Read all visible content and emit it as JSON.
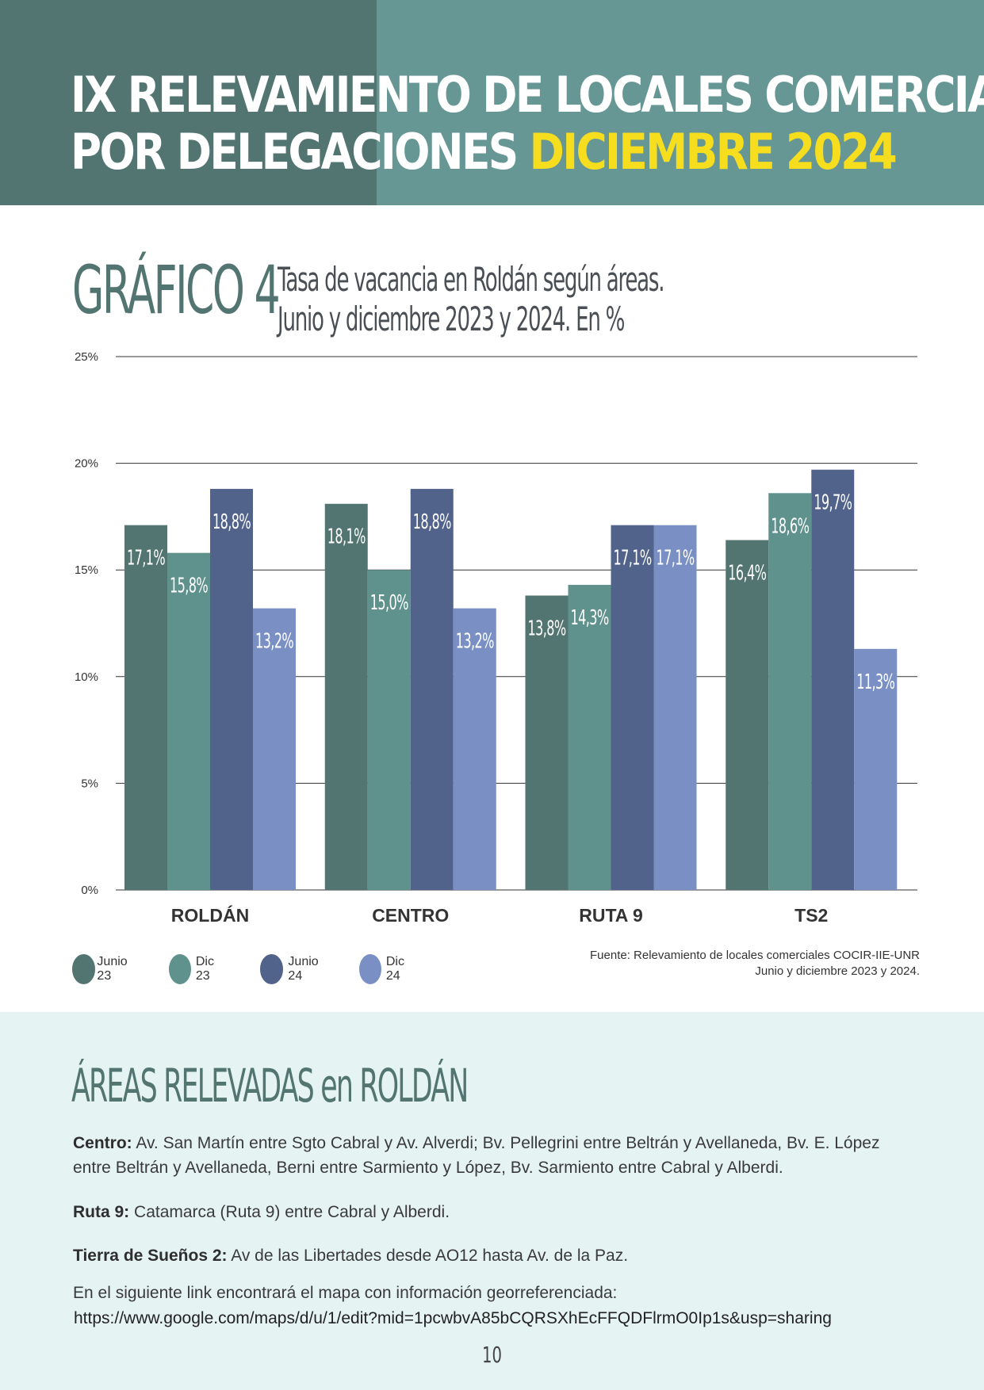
{
  "header": {
    "title_line1": "IX RELEVAMIENTO DE LOCALES COMERCIALES",
    "title_line2_a": "POR DELEGACIONES ",
    "title_line2_b": "DICIEMBRE 2024"
  },
  "chart_heading": {
    "number": "GRÁFICO 4",
    "subtitle_line1": "Tasa de vacancia en Roldán según áreas.",
    "subtitle_line2": "Junio y diciembre 2023 y 2024. En %"
  },
  "chart_data": {
    "type": "bar",
    "categories": [
      "ROLDÁN",
      "CENTRO",
      "RUTA 9",
      "TS2"
    ],
    "series": [
      {
        "name": "Junio 23",
        "color": "#537571",
        "values": [
          17.1,
          18.1,
          13.8,
          16.4
        ],
        "labels": [
          "17,1%",
          "18,1%",
          "13,8%",
          "16,4%"
        ]
      },
      {
        "name": "Dic 23",
        "color": "#5f918d",
        "values": [
          15.8,
          15.0,
          14.3,
          18.6
        ],
        "labels": [
          "15,8%",
          "15,0%",
          "14,3%",
          "18,6%"
        ]
      },
      {
        "name": "Junio 24",
        "color": "#52638b",
        "values": [
          18.8,
          18.8,
          17.1,
          19.7
        ],
        "labels": [
          "18,8%",
          "18,8%",
          "17,1%",
          "19,7%"
        ]
      },
      {
        "name": "Dic 24",
        "color": "#7a90c5",
        "values": [
          13.2,
          13.2,
          17.1,
          11.3
        ],
        "labels": [
          "13,2%",
          "13,2%",
          "17,1%",
          "11,3%"
        ]
      }
    ],
    "yticks": [
      "0%",
      "5%",
      "10%",
      "15%",
      "20%",
      "25%"
    ],
    "ylim": [
      0,
      25
    ],
    "grid": true,
    "legend": "bottom-left"
  },
  "source": {
    "line1": "Fuente: Relevamiento de locales comerciales COCIR-IIE-UNR",
    "line2": "Junio y diciembre 2023 y 2024."
  },
  "areas": {
    "title": "ÁREAS RELEVADAS en ROLDÁN",
    "centro_label": "Centro:",
    "centro_text": " Av. San Martín entre Sgto Cabral y Av. Alverdi; Bv. Pellegrini entre Beltrán y Avellaneda, Bv. E. López entre Beltrán y Avellaneda, Berni entre Sarmiento y López, Bv. Sarmiento entre Cabral y Alberdi.",
    "ruta_label": "Ruta 9:",
    "ruta_text": " Catamarca (Ruta 9) entre Cabral y Alberdi.",
    "tierra_label": "Tierra de Sueños 2:",
    "tierra_text": " Av de las Libertades desde AO12 hasta Av. de la Paz.",
    "link_intro": "En el siguiente link encontrará el mapa con información georreferenciada:",
    "link_url": "https://www.google.com/maps/d/u/1/edit?mid=1pcwbvA85bCQRSXhEcFFQDFlrmO0Ip1s&usp=sharing"
  },
  "page_number": "10"
}
